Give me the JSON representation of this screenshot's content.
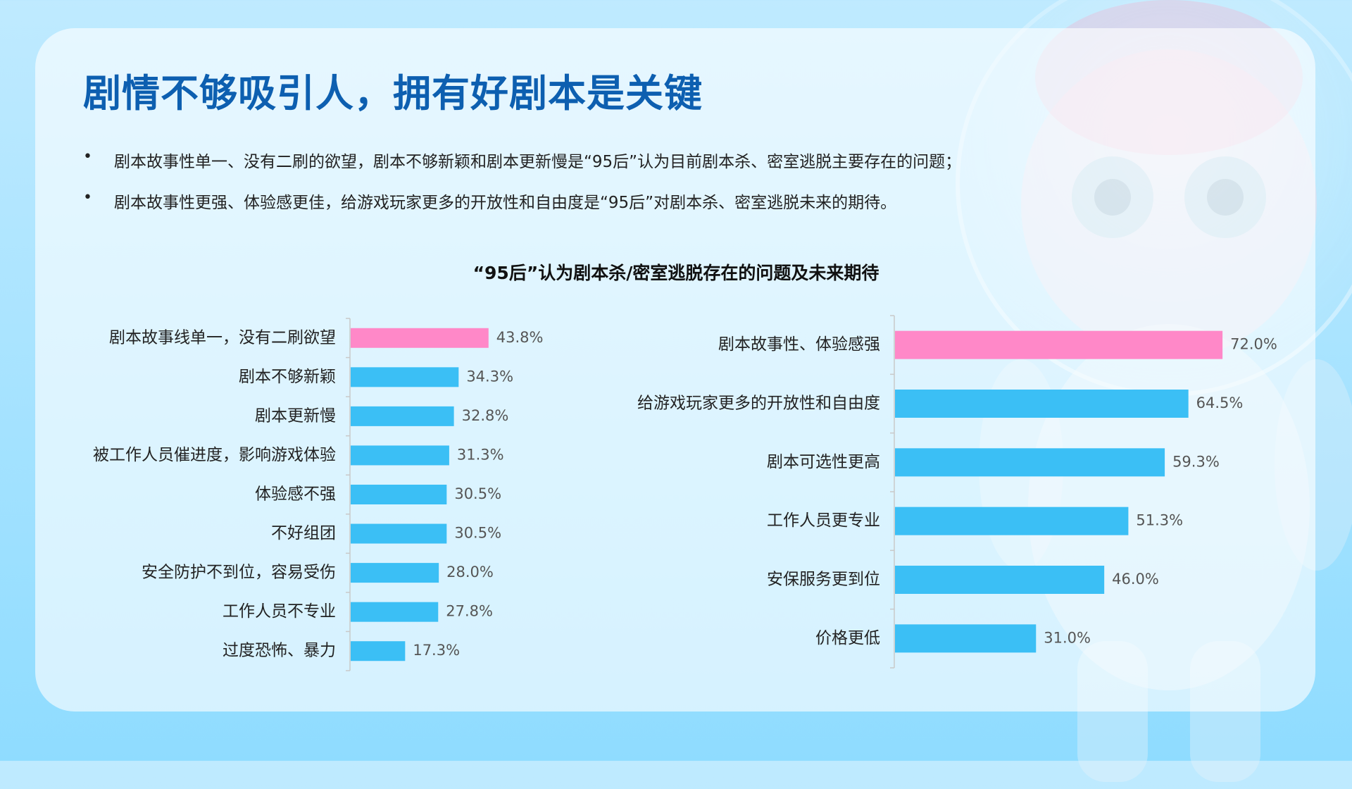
{
  "page": {
    "title": "剧情不够吸引人，拥有好剧本是关键",
    "bullets": [
      "剧本故事性单一、没有二刷的欲望，剧本不够新颖和剧本更新慢是“95后”认为目前剧本杀、密室逃脱主要存在的问题；",
      "剧本故事性更强、体验感更佳，给游戏玩家更多的开放性和自由度是“95后”对剧本杀、密室逃脱未来的期待。"
    ],
    "bullet_symbol": "•"
  },
  "colors": {
    "highlight": "#ff88c8",
    "bar": "#3bbff5",
    "title": "#0d5fb0"
  },
  "chart_title": "“95后”认为剧本杀/密室逃脱存在的问题及未来期待",
  "chart_data": [
    {
      "type": "bar",
      "orientation": "horizontal",
      "categories": [
        "剧本故事线单一，没有二刷欲望",
        "剧本不够新颖",
        "剧本更新慢",
        "被工作人员催进度，影响游戏体验",
        "体验感不强",
        "不好组团",
        "安全防护不到位，容易受伤",
        "工作人员不专业",
        "过度恐怖、暴力"
      ],
      "values": [
        43.8,
        34.3,
        32.8,
        31.3,
        30.5,
        30.5,
        28.0,
        27.8,
        17.3
      ],
      "value_labels": [
        "43.8%",
        "34.3%",
        "32.8%",
        "31.3%",
        "30.5%",
        "30.5%",
        "28.0%",
        "27.8%",
        "17.3%"
      ],
      "highlight_index": 0,
      "xlim": [
        0,
        100
      ],
      "grid": false
    },
    {
      "type": "bar",
      "orientation": "horizontal",
      "categories": [
        "剧本故事性、体验感强",
        "给游戏玩家更多的开放性和自由度",
        "剧本可选性更高",
        "工作人员更专业",
        "安保服务更到位",
        "价格更低"
      ],
      "values": [
        72.0,
        64.5,
        59.3,
        51.3,
        46.0,
        31.0
      ],
      "value_labels": [
        "72.0%",
        "64.5%",
        "59.3%",
        "51.3%",
        "46.0%",
        "31.0%"
      ],
      "highlight_index": 0,
      "xlim": [
        0,
        100
      ],
      "grid": false
    }
  ]
}
